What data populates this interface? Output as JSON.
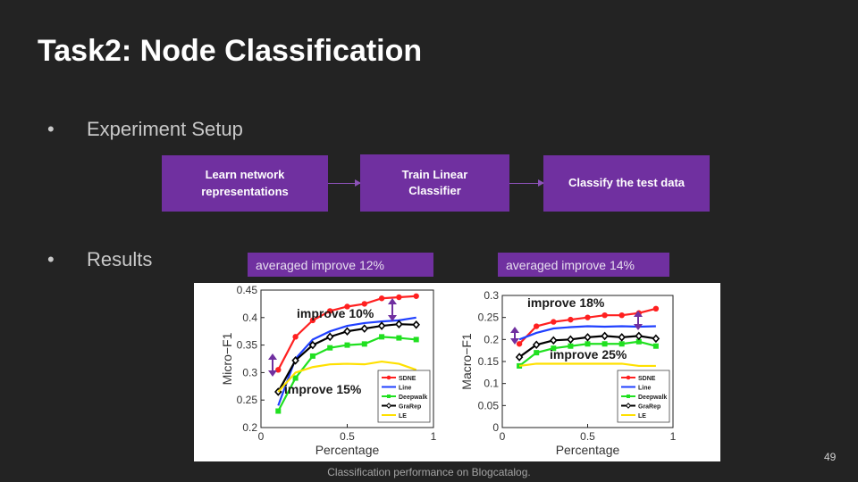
{
  "slide": {
    "title": "Task2: Node Classification",
    "bullet_setup": "Experiment Setup",
    "bullet_results": "Results",
    "bullet_char": "•",
    "flow": [
      "Learn network representations",
      "Train Linear Classifier",
      "Classify the test data"
    ],
    "avg_left": "averaged improve 12%",
    "avg_right": "averaged improve 14%",
    "caption": "Classification performance on Blogcatalog.",
    "page_number": "49",
    "colors": {
      "background": "#232323",
      "accent": "#7030a0",
      "annotation_arrow": "#7030a0"
    }
  },
  "chart_data": [
    {
      "type": "line",
      "ylabel": "Micro−F1",
      "xlabel": "Percentage",
      "xlim": [
        0,
        1
      ],
      "ylim": [
        0.2,
        0.45
      ],
      "xticks": [
        "0",
        "0.5",
        "1"
      ],
      "yticks": [
        "0.2",
        "0.25",
        "0.3",
        "0.35",
        "0.4",
        "0.45"
      ],
      "x": [
        0.1,
        0.2,
        0.3,
        0.4,
        0.5,
        0.6,
        0.7,
        0.8,
        0.9
      ],
      "series": [
        {
          "name": "SDNE",
          "color": "#ff2020",
          "marker": "circle",
          "values": [
            0.305,
            0.365,
            0.395,
            0.412,
            0.42,
            0.425,
            0.435,
            0.437,
            0.439
          ]
        },
        {
          "name": "Line",
          "color": "#2040ff",
          "marker": "none",
          "values": [
            0.24,
            0.325,
            0.36,
            0.375,
            0.385,
            0.39,
            0.393,
            0.395,
            0.4
          ]
        },
        {
          "name": "Deepwalk",
          "color": "#20e020",
          "marker": "square",
          "values": [
            0.23,
            0.29,
            0.33,
            0.345,
            0.35,
            0.352,
            0.365,
            0.363,
            0.36
          ]
        },
        {
          "name": "GraRep",
          "color": "#000000",
          "marker": "diamond",
          "values": [
            0.265,
            0.322,
            0.35,
            0.365,
            0.375,
            0.38,
            0.385,
            0.388,
            0.387
          ]
        },
        {
          "name": "LE",
          "color": "#ffe000",
          "marker": "none",
          "values": [
            0.265,
            0.3,
            0.31,
            0.315,
            0.316,
            0.315,
            0.32,
            0.316,
            0.305
          ]
        }
      ],
      "annotations": [
        "improve 10%",
        "improve 15%"
      ],
      "legend": "bottom-right"
    },
    {
      "type": "line",
      "ylabel": "Macro−F1",
      "xlabel": "Percentage",
      "xlim": [
        0,
        1
      ],
      "ylim": [
        0,
        0.3
      ],
      "xticks": [
        "0",
        "0.5",
        "1"
      ],
      "yticks": [
        "0",
        "0.05",
        "0.1",
        "0.15",
        "0.2",
        "0.25",
        "0.3"
      ],
      "x": [
        0.1,
        0.2,
        0.3,
        0.4,
        0.5,
        0.6,
        0.7,
        0.8,
        0.9
      ],
      "series": [
        {
          "name": "SDNE",
          "color": "#ff2020",
          "marker": "circle",
          "values": [
            0.19,
            0.23,
            0.24,
            0.245,
            0.25,
            0.255,
            0.255,
            0.26,
            0.27
          ]
        },
        {
          "name": "Line",
          "color": "#2040ff",
          "marker": "none",
          "values": [
            0.2,
            0.215,
            0.225,
            0.228,
            0.23,
            0.229,
            0.23,
            0.229,
            0.23
          ]
        },
        {
          "name": "Deepwalk",
          "color": "#20e020",
          "marker": "square",
          "values": [
            0.14,
            0.17,
            0.18,
            0.185,
            0.19,
            0.19,
            0.19,
            0.195,
            0.185
          ]
        },
        {
          "name": "GraRep",
          "color": "#000000",
          "marker": "diamond",
          "values": [
            0.16,
            0.188,
            0.198,
            0.2,
            0.205,
            0.208,
            0.205,
            0.208,
            0.202
          ]
        },
        {
          "name": "LE",
          "color": "#ffe000",
          "marker": "none",
          "values": [
            0.14,
            0.145,
            0.145,
            0.145,
            0.145,
            0.145,
            0.145,
            0.14,
            0.14
          ]
        }
      ],
      "annotations": [
        "improve 18%",
        "improve 25%"
      ],
      "legend": "bottom-right"
    }
  ]
}
